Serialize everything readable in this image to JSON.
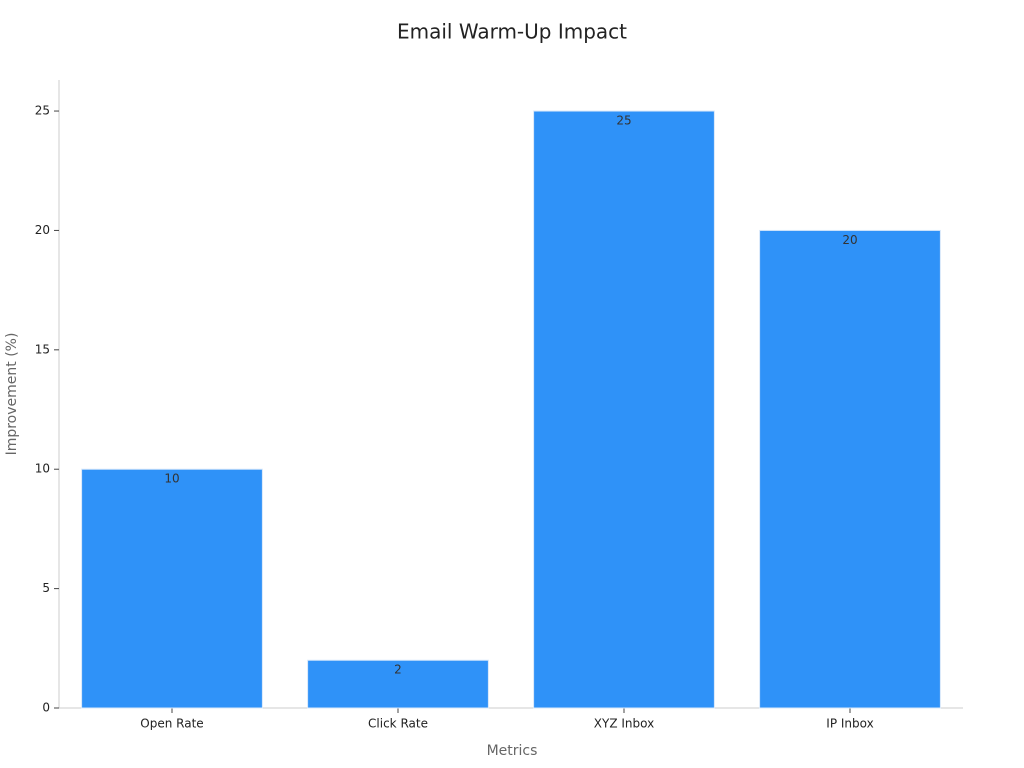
{
  "chart_data": {
    "type": "bar",
    "title": "Email Warm-Up Impact",
    "x_label": "Metrics",
    "y_label": "Improvement (%)",
    "categories": [
      "Open Rate",
      "Click Rate",
      "XYZ Inbox",
      "IP Inbox"
    ],
    "values": [
      10,
      2,
      25,
      20
    ],
    "color": "#2f92f8",
    "ylim": [
      0,
      26.3
    ],
    "yticks": [
      0,
      5,
      10,
      15,
      20,
      25
    ],
    "grid": false
  }
}
